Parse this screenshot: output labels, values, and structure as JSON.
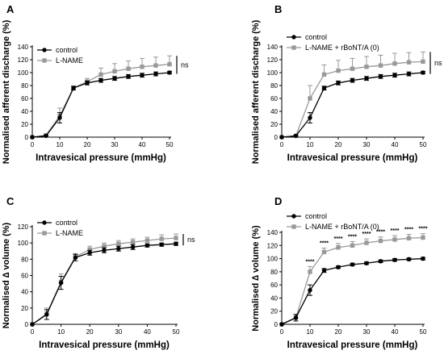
{
  "chart_data": [
    {
      "panel_label": "A",
      "type": "line",
      "ylabel": "Normalised afferent discharge (%)",
      "xlabel": "Intravesical pressure (mmHg)",
      "xlim": [
        0,
        50
      ],
      "ylim": [
        0,
        140
      ],
      "xticks": [
        0,
        10,
        20,
        30,
        40,
        50
      ],
      "yticks": [
        0,
        20,
        40,
        60,
        80,
        100,
        120,
        140
      ],
      "x": [
        0,
        5,
        10,
        15,
        20,
        25,
        30,
        35,
        40,
        45,
        50
      ],
      "legend_position": "top-left",
      "series": [
        {
          "name": "control",
          "marker": "circle",
          "color": "#000000",
          "values": [
            0,
            2,
            30,
            76,
            84,
            88,
            91,
            94,
            96,
            98,
            100
          ],
          "errors": [
            0,
            1,
            8,
            3,
            3,
            3,
            3,
            3,
            3,
            3,
            2
          ]
        },
        {
          "name": "L-NAME",
          "marker": "square",
          "color": "#999999",
          "values": [
            0,
            3,
            33,
            76,
            86,
            97,
            102,
            106,
            109,
            111,
            113
          ],
          "errors": [
            0,
            2,
            12,
            3,
            5,
            10,
            12,
            12,
            13,
            13,
            13
          ]
        }
      ],
      "annotation": "ns",
      "significance": []
    },
    {
      "panel_label": "B",
      "type": "line",
      "ylabel": "Normalised afferent discharge (%)",
      "xlabel": "Intravesical pressure (mmHg)",
      "xlim": [
        0,
        50
      ],
      "ylim": [
        0,
        140
      ],
      "xticks": [
        0,
        10,
        20,
        30,
        40,
        50
      ],
      "yticks": [
        0,
        20,
        40,
        60,
        80,
        100,
        120,
        140
      ],
      "x": [
        0,
        5,
        10,
        15,
        20,
        25,
        30,
        35,
        40,
        45,
        50
      ],
      "legend_position": "top-left",
      "series": [
        {
          "name": "control",
          "marker": "circle",
          "color": "#000000",
          "values": [
            0,
            2,
            30,
            76,
            84,
            88,
            91,
            94,
            96,
            98,
            100
          ],
          "errors": [
            0,
            1,
            8,
            3,
            3,
            3,
            3,
            3,
            3,
            3,
            2
          ]
        },
        {
          "name": "L-NAME + rBoNT/A (0)",
          "marker": "square",
          "color": "#999999",
          "values": [
            0,
            2,
            60,
            97,
            103,
            106,
            109,
            111,
            114,
            116,
            117
          ],
          "errors": [
            0,
            2,
            20,
            15,
            16,
            16,
            16,
            16,
            16,
            15,
            15
          ]
        }
      ],
      "annotation": "ns",
      "significance": []
    },
    {
      "panel_label": "C",
      "type": "line",
      "ylabel": "Normalised ∆ volume (%)",
      "xlabel": "Intravesical pressure (mmHg)",
      "xlim": [
        0,
        50
      ],
      "ylim": [
        0,
        120
      ],
      "xticks": [
        0,
        10,
        20,
        30,
        40,
        50
      ],
      "yticks": [
        0,
        20,
        40,
        60,
        80,
        100,
        120
      ],
      "x": [
        0,
        5,
        10,
        15,
        20,
        25,
        30,
        35,
        40,
        45,
        50
      ],
      "legend_position": "top-left",
      "series": [
        {
          "name": "control",
          "marker": "circle",
          "color": "#000000",
          "values": [
            0,
            12,
            51,
            82,
            88,
            91,
            93,
            95,
            97,
            98,
            99
          ],
          "errors": [
            0,
            6,
            8,
            4,
            3,
            3,
            3,
            3,
            2,
            2,
            2
          ]
        },
        {
          "name": "L-NAME",
          "marker": "square",
          "color": "#999999",
          "values": [
            0,
            13,
            52,
            83,
            92,
            96,
            99,
            101,
            103,
            105,
            106
          ],
          "errors": [
            0,
            7,
            10,
            4,
            4,
            4,
            4,
            4,
            4,
            5,
            5
          ]
        }
      ],
      "annotation": "ns",
      "significance": []
    },
    {
      "panel_label": "D",
      "type": "line",
      "ylabel": "Normalised ∆ volume (%)",
      "xlabel": "Intravesical pressure (mmHg)",
      "xlim": [
        0,
        50
      ],
      "ylim": [
        0,
        140
      ],
      "xticks": [
        0,
        10,
        20,
        30,
        40,
        50
      ],
      "yticks": [
        0,
        20,
        40,
        60,
        80,
        100,
        120,
        140
      ],
      "x": [
        0,
        5,
        10,
        15,
        20,
        25,
        30,
        35,
        40,
        45,
        50
      ],
      "legend_position": "top-left",
      "series": [
        {
          "name": "control",
          "marker": "circle",
          "color": "#000000",
          "values": [
            0,
            10,
            52,
            82,
            87,
            91,
            93,
            96,
            98,
            99,
            100
          ],
          "errors": [
            0,
            5,
            8,
            3,
            2,
            2,
            2,
            2,
            2,
            2,
            2
          ]
        },
        {
          "name": "L-NAME + rBoNT/A (0)",
          "marker": "square",
          "color": "#999999",
          "values": [
            0,
            10,
            80,
            110,
            117,
            120,
            124,
            127,
            129,
            131,
            132
          ],
          "errors": [
            0,
            5,
            8,
            6,
            6,
            6,
            6,
            6,
            6,
            6,
            6
          ]
        }
      ],
      "annotation": "",
      "significance": [
        "",
        "",
        "****",
        "****",
        "****",
        "****",
        "****",
        "****",
        "****",
        "****",
        "****"
      ]
    }
  ]
}
